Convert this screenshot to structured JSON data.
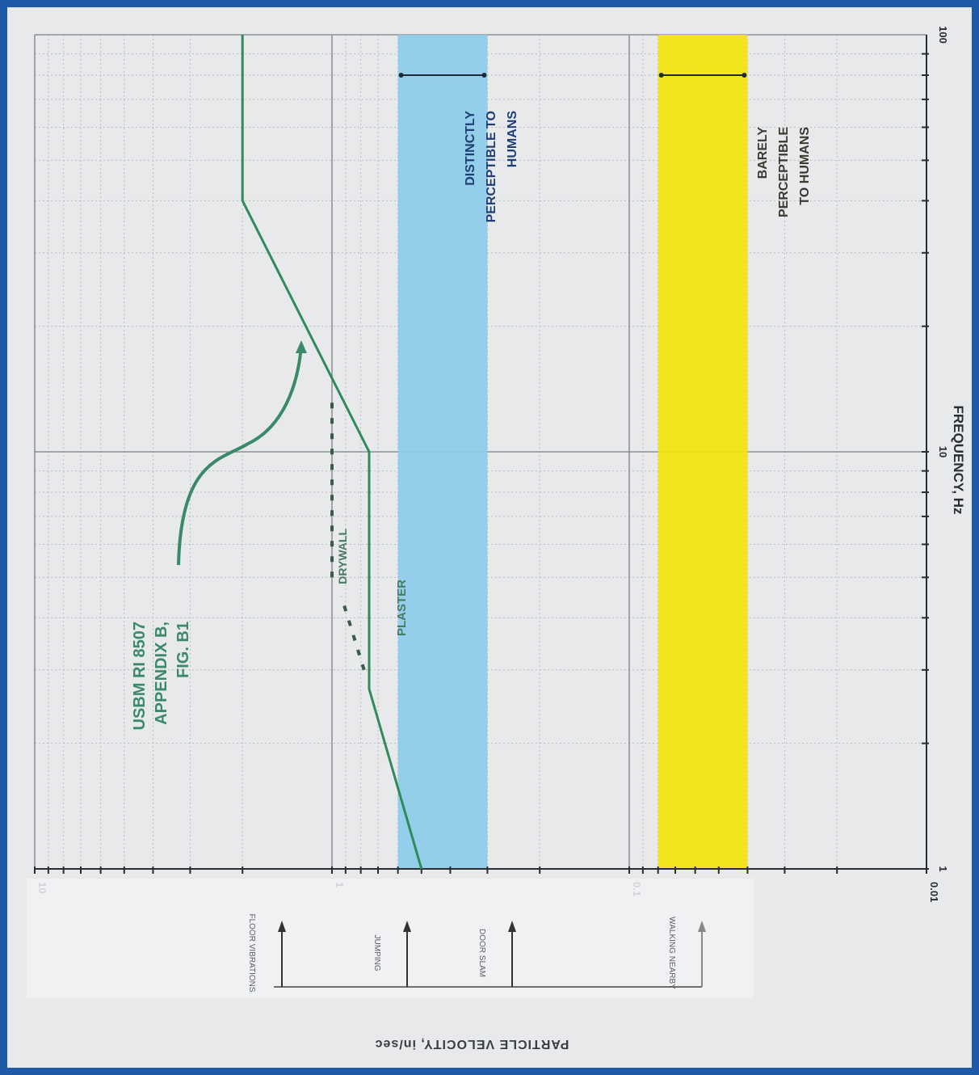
{
  "colors": {
    "frame": "#1f5aa8",
    "paper": "#e8e9eb",
    "limit_curve": "#2f8a5c",
    "annotation_green": "#3a8a6a",
    "blue_band": "#8ccbe9",
    "yellow_band": "#f4e30d",
    "text_dark": "#1e3a5a",
    "grid": "#b9bcc0"
  },
  "chart_data": {
    "type": "line",
    "xlabel": "FREQUENCY, Hz",
    "ylabel": "PARTICLE VELOCITY, in/sec",
    "x_scale": "log",
    "y_scale": "log",
    "xlim": [
      1,
      100
    ],
    "ylim": [
      0.01,
      10
    ],
    "x_ticks": [
      "1",
      "10",
      "100"
    ],
    "y_ticks": [
      "0.01",
      "0.1",
      "1",
      "10"
    ],
    "grid": true,
    "series": [
      {
        "name": "USBM RI 8507 APPENDIX B, FIG. B1",
        "points": [
          [
            1,
            0.5
          ],
          [
            2.7,
            0.75
          ],
          [
            10,
            0.75
          ],
          [
            40,
            2.0
          ],
          [
            100,
            2.0
          ]
        ]
      },
      {
        "name": "DRYWALL",
        "style": "dashed",
        "points": [
          [
            5.0,
            1.0
          ],
          [
            13.5,
            1.0
          ]
        ]
      },
      {
        "name": "PLASTER",
        "style": "dashed",
        "points": [
          [
            3.0,
            0.78
          ],
          [
            4.5,
            0.93
          ]
        ]
      }
    ],
    "bands": [
      {
        "label": "DISTINCTLY PERCEPTIBLE TO HUMANS",
        "y_low": 0.3,
        "y_high": 0.6,
        "x_low": 1,
        "x_high": 100,
        "color": "#8ccbe9"
      },
      {
        "label": "BARELY PERCEPTIBLE TO HUMANS",
        "y_low": 0.04,
        "y_high": 0.08,
        "x_low": 1,
        "x_high": 100,
        "color": "#f4e30d"
      }
    ],
    "annotations": {
      "usbm_label": [
        "USBM RI 8507",
        "APPENDIX B,",
        "FIG. B1"
      ],
      "drywall": "DRYWALL",
      "plaster": "PLASTER",
      "band_blue": [
        "DISTINCTLY",
        "PERCEPTIBLE TO",
        "HUMANS"
      ],
      "band_yellow": [
        "BARELY",
        "PERCEPTIBLE",
        "TO HUMANS"
      ]
    },
    "side_indicators": [
      "FLOOR VIBRATIONS",
      "JUMPING",
      "DOOR SLAM",
      "WALKING NEARBY"
    ]
  }
}
